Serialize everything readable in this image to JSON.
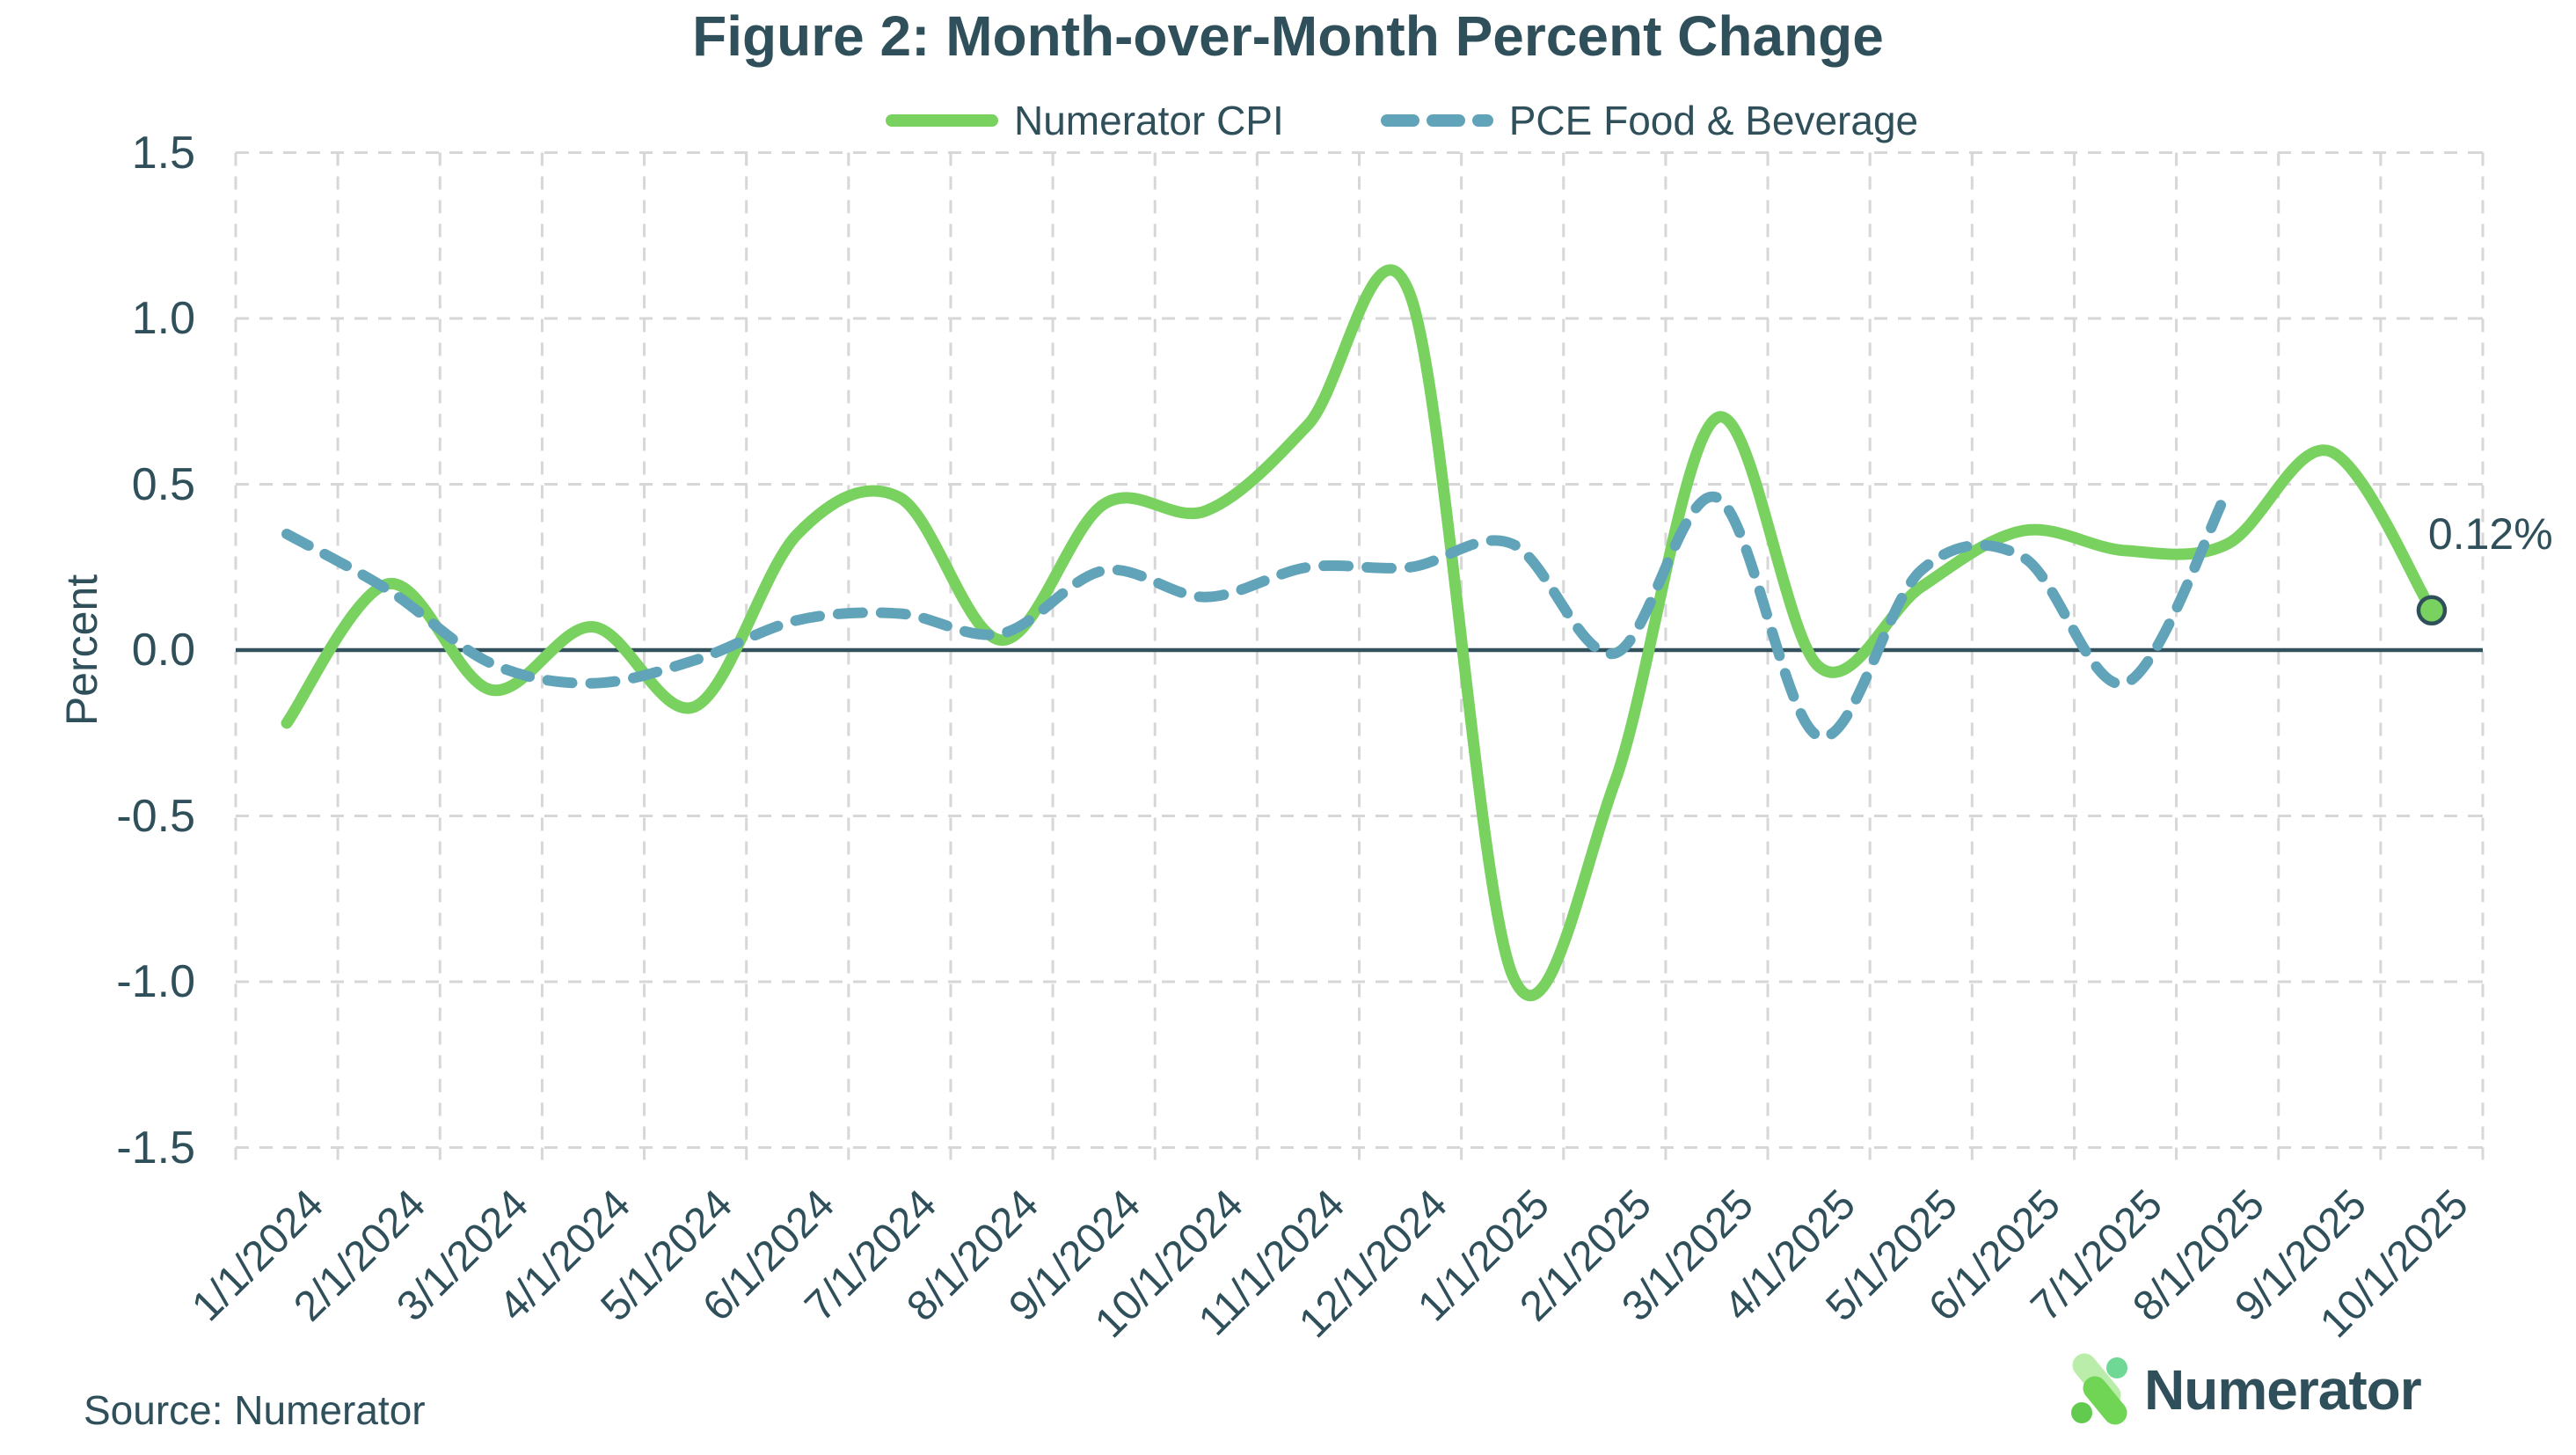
{
  "header": {
    "title": "Figure 2: Month-over-Month Percent Change"
  },
  "legend": {
    "items": [
      {
        "label": "Numerator CPI"
      },
      {
        "label": "PCE Food & Beverage"
      }
    ]
  },
  "axes": {
    "y_title": "Percent"
  },
  "annotation": {
    "text": "0.12%"
  },
  "footer": {
    "source": "Source: Numerator",
    "logo_text": "Numerator"
  },
  "chart_data": {
    "type": "line",
    "title": "Figure 2: Month-over-Month Percent Change",
    "xlabel": "",
    "ylabel": "Percent",
    "ylim": [
      -1.5,
      1.5
    ],
    "grid": true,
    "legend_position": "top-center",
    "y_ticks": [
      "1.5",
      "1.0",
      "0.5",
      "0.0",
      "-0.5",
      "-1.0",
      "-1.5"
    ],
    "categories": [
      "1/1/2024",
      "2/1/2024",
      "3/1/2024",
      "4/1/2024",
      "5/1/2024",
      "6/1/2024",
      "7/1/2024",
      "8/1/2024",
      "9/1/2024",
      "10/1/2024",
      "11/1/2024",
      "12/1/2024",
      "1/1/2025",
      "2/1/2025",
      "3/1/2025",
      "4/1/2025",
      "5/1/2025",
      "6/1/2025",
      "7/1/2025",
      "8/1/2025",
      "9/1/2025",
      "10/1/2025"
    ],
    "series": [
      {
        "name": "Numerator CPI",
        "style": "solid",
        "color": "#79d25f",
        "values": [
          -0.22,
          0.2,
          -0.12,
          0.07,
          -0.17,
          0.35,
          0.46,
          0.03,
          0.44,
          0.42,
          0.68,
          1.07,
          -0.98,
          -0.4,
          0.7,
          -0.05,
          0.19,
          0.36,
          0.3,
          0.32,
          0.6,
          0.12
        ]
      },
      {
        "name": "PCE Food & Beverage",
        "style": "dashed",
        "color": "#61a3b8",
        "values": [
          0.35,
          0.18,
          -0.04,
          -0.1,
          -0.03,
          0.09,
          0.11,
          0.05,
          0.24,
          0.16,
          0.25,
          0.25,
          0.32,
          -0.01,
          0.46,
          -0.26,
          0.24,
          0.28,
          -0.1,
          0.48
        ]
      }
    ],
    "end_label": {
      "text": "0.12%",
      "value": 0.12,
      "series": "Numerator CPI"
    },
    "colors": {
      "text": "#2f4f5a",
      "grid": "#d7d7d7",
      "zero_line": "#33525e"
    }
  },
  "logo_colors": {
    "bar_light": "#b9eda9",
    "bar_mid": "#70d455",
    "dot_green": "#62ca4e",
    "dot_teal": "#70d895"
  }
}
